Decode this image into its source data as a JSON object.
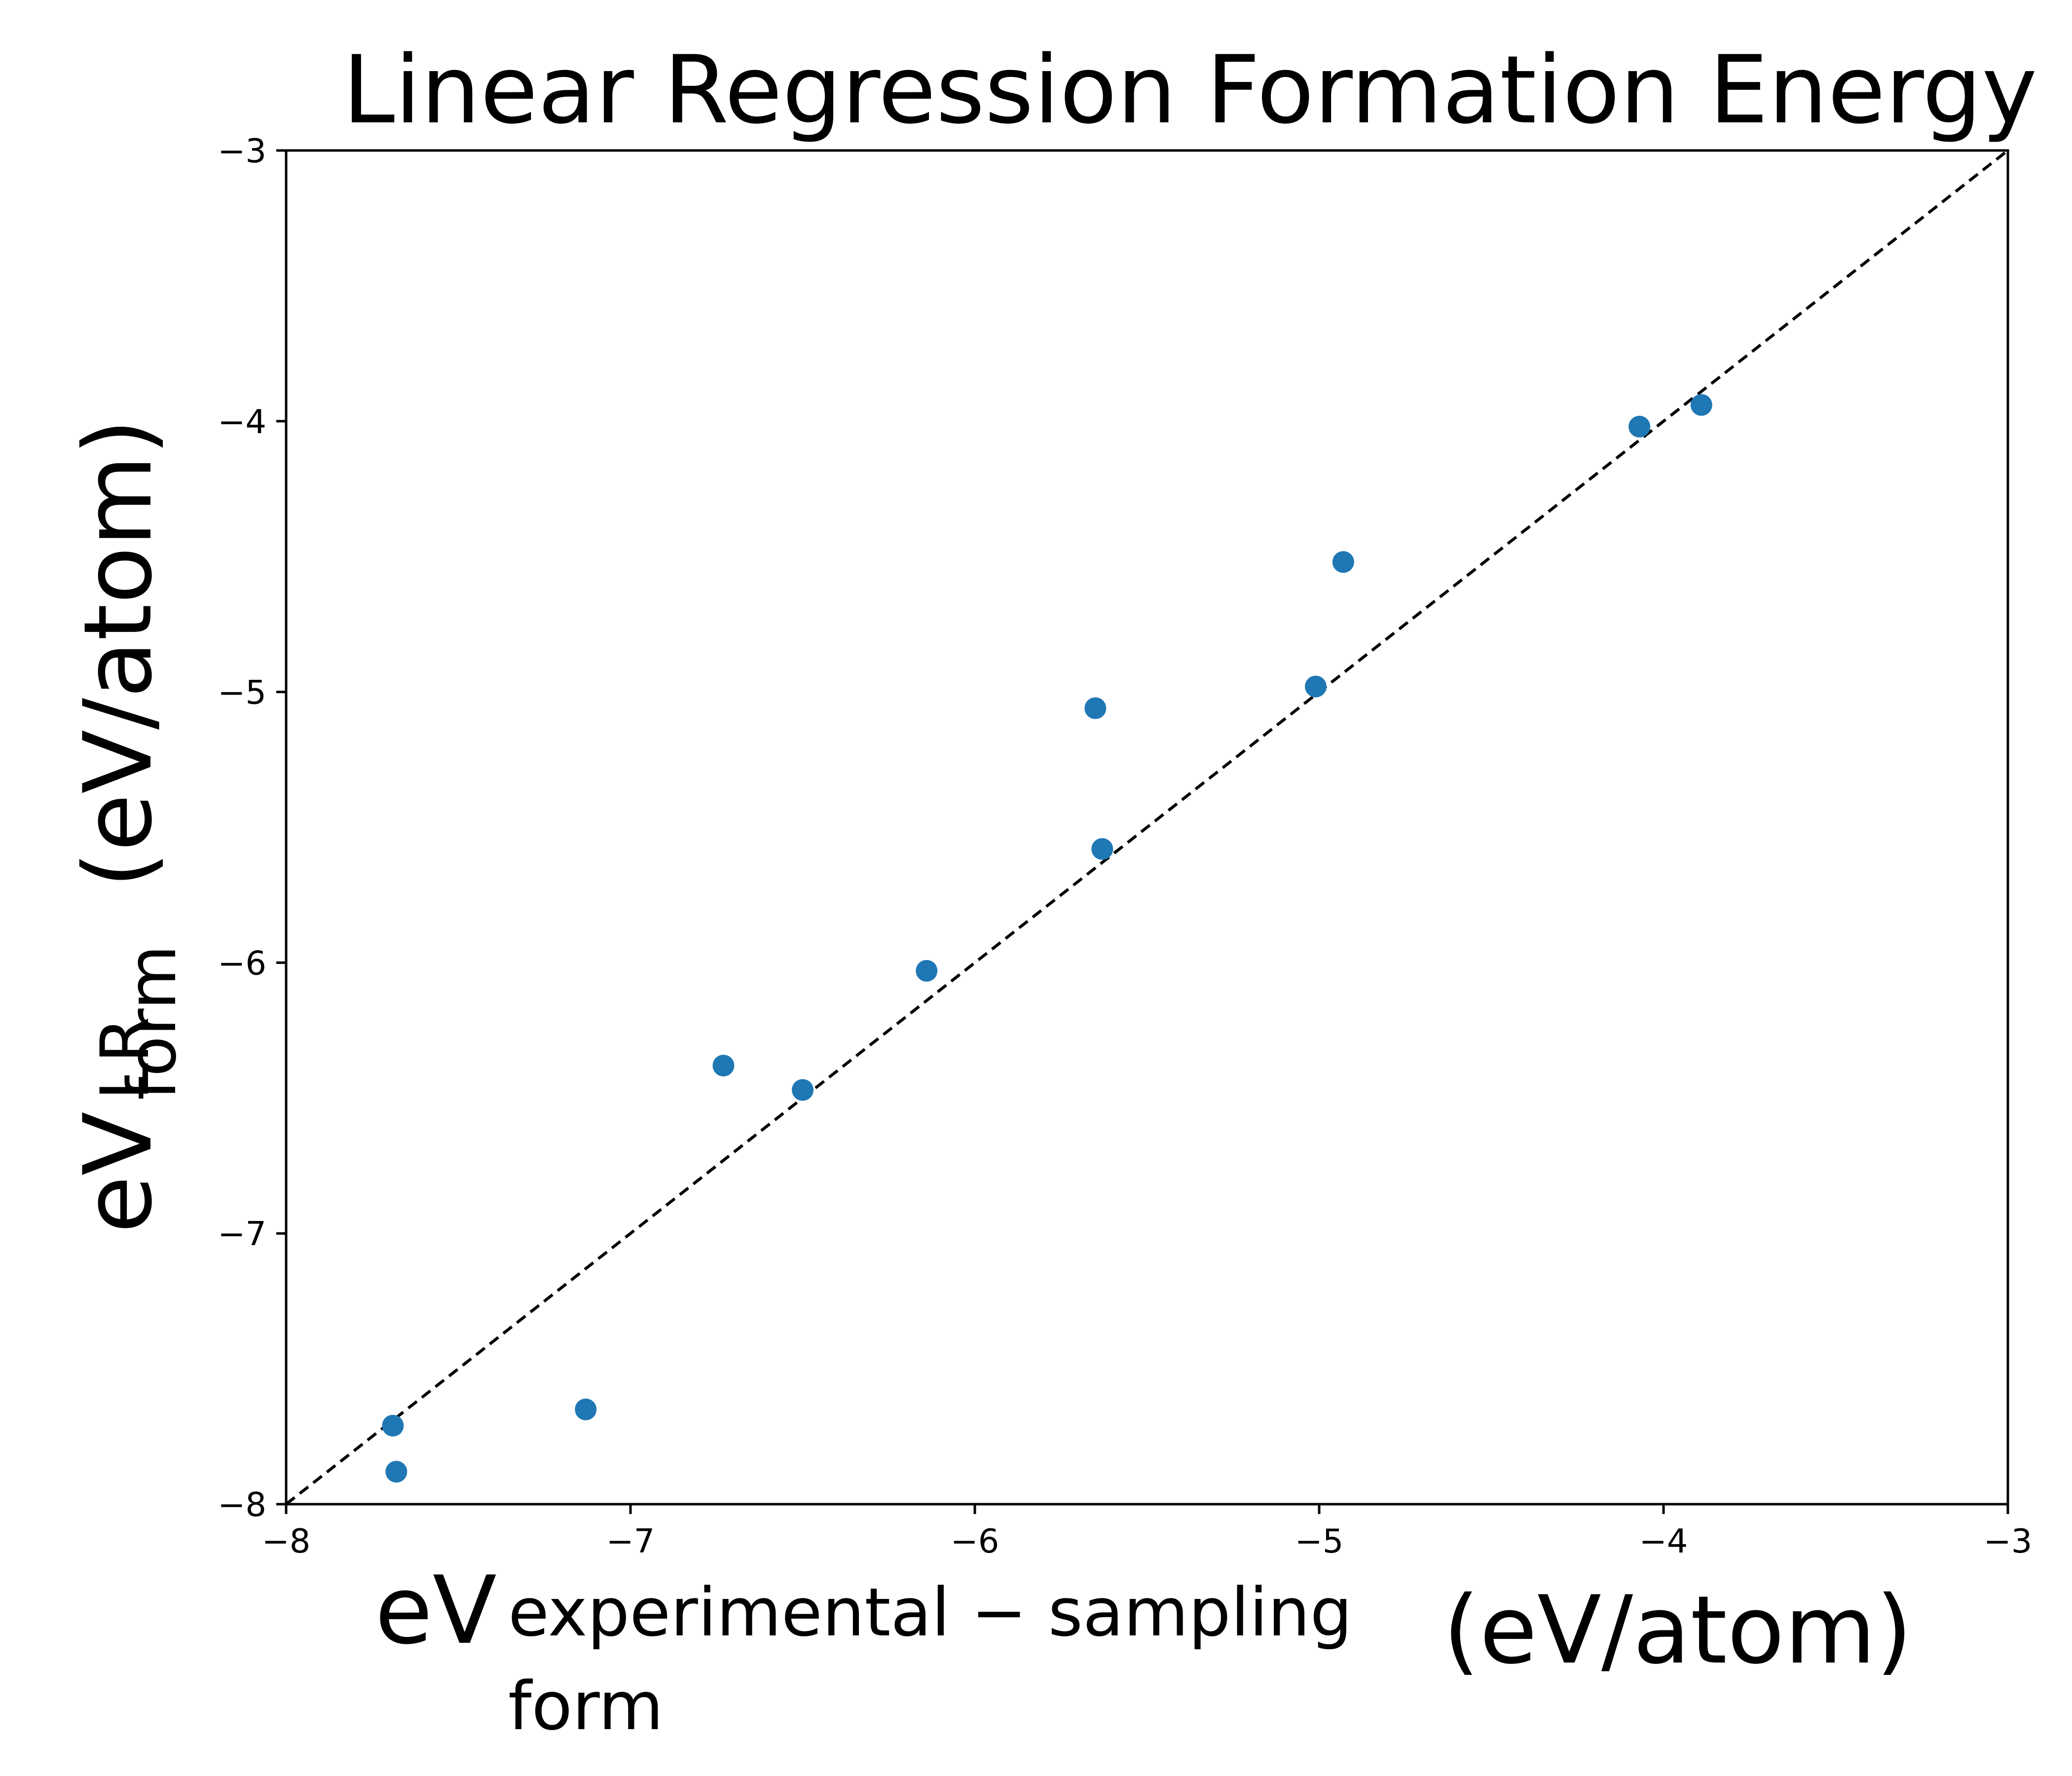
{
  "chart_data": {
    "type": "scatter",
    "title": "Linear Regression Formation Energy",
    "xlabel": {
      "base": "eV",
      "superscript": "experimental − sampling",
      "subscript": "form",
      "unit": "(eV/atom)"
    },
    "ylabel": {
      "base": "eV",
      "superscript": "LR",
      "subscript": "form",
      "unit": "(eV/atom)"
    },
    "xlim": [
      -8,
      -3
    ],
    "ylim": [
      -8,
      -3
    ],
    "xticks": [
      -8,
      -7,
      -6,
      -5,
      -4,
      -3
    ],
    "yticks": [
      -8,
      -7,
      -6,
      -5,
      -4,
      -3
    ],
    "xtick_labels": [
      "−8",
      "−7",
      "−6",
      "−5",
      "−4",
      "−3"
    ],
    "ytick_labels": [
      "−8",
      "−7",
      "−6",
      "−5",
      "−4",
      "−3"
    ],
    "grid": false,
    "reference_line": {
      "style": "dashed",
      "color": "#000000",
      "from": [
        -8,
        -8
      ],
      "to": [
        -3,
        -3
      ]
    },
    "series": [
      {
        "color": "#1f77b4",
        "points": [
          {
            "x": -7.69,
            "y": -7.71
          },
          {
            "x": -7.68,
            "y": -7.88
          },
          {
            "x": -7.13,
            "y": -7.65
          },
          {
            "x": -6.73,
            "y": -6.38
          },
          {
            "x": -6.5,
            "y": -6.47
          },
          {
            "x": -6.14,
            "y": -6.03
          },
          {
            "x": -5.65,
            "y": -5.06
          },
          {
            "x": -5.63,
            "y": -5.58
          },
          {
            "x": -5.01,
            "y": -4.98
          },
          {
            "x": -4.93,
            "y": -4.52
          },
          {
            "x": -4.07,
            "y": -4.02
          },
          {
            "x": -3.89,
            "y": -3.94
          }
        ]
      }
    ]
  }
}
